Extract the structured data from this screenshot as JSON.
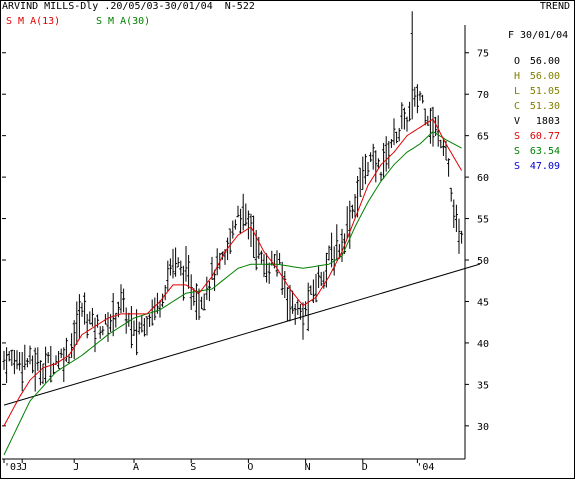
{
  "header": {
    "title": "ARVIND MILLS-Dly .20/05/03-30/01/04  N-522",
    "indicator_label": "TREND",
    "sma13_label": "S M A(13)",
    "sma30_label": "S M A(30)"
  },
  "info_panel": {
    "date": "F 30/01/04",
    "rows": [
      {
        "key": "O",
        "value": "56.00",
        "color": "#000000"
      },
      {
        "key": "H",
        "value": "56.00",
        "color": "#808000"
      },
      {
        "key": "L",
        "value": "51.05",
        "color": "#808000"
      },
      {
        "key": "C",
        "value": "51.30",
        "color": "#808000"
      },
      {
        "key": "V",
        "value": "1803",
        "color": "#000000"
      },
      {
        "key": "S",
        "value": "60.77",
        "color": "#e00000"
      },
      {
        "key": "S",
        "value": "63.54",
        "color": "#008000"
      },
      {
        "key": "S",
        "value": "47.09",
        "color": "#0000cc"
      }
    ]
  },
  "colors": {
    "sma13": "#e00000",
    "sma30": "#008000",
    "bars": "#000000",
    "trendline": "#000000"
  },
  "chart_data": {
    "type": "ohlc",
    "title": "ARVIND MILLS-Dly .20/05/03-30/01/04  N-522",
    "ylim": [
      26,
      81
    ],
    "y_ticks": [
      30,
      35,
      40,
      45,
      50,
      55,
      60,
      65,
      70,
      75
    ],
    "x_ticks": [
      {
        "label": "'03",
        "bar": 0
      },
      {
        "label": "J",
        "bar": 7
      },
      {
        "label": "J",
        "bar": 27
      },
      {
        "label": "A",
        "bar": 50
      },
      {
        "label": "S",
        "bar": 72
      },
      {
        "label": "O",
        "bar": 94
      },
      {
        "label": "N",
        "bar": 116
      },
      {
        "label": "D",
        "bar": 138
      },
      {
        "label": "'04",
        "bar": 159
      }
    ],
    "price_anchors": [
      [
        0,
        38
      ],
      [
        8,
        38
      ],
      [
        14,
        37
      ],
      [
        20,
        38
      ],
      [
        25,
        39
      ],
      [
        30,
        44
      ],
      [
        35,
        42
      ],
      [
        40,
        42
      ],
      [
        45,
        45
      ],
      [
        50,
        41
      ],
      [
        55,
        43
      ],
      [
        60,
        45
      ],
      [
        65,
        50
      ],
      [
        70,
        48
      ],
      [
        75,
        45
      ],
      [
        80,
        48
      ],
      [
        85,
        50
      ],
      [
        90,
        56
      ],
      [
        95,
        54
      ],
      [
        100,
        49
      ],
      [
        105,
        50
      ],
      [
        110,
        45
      ],
      [
        115,
        43
      ],
      [
        120,
        47
      ],
      [
        125,
        50
      ],
      [
        130,
        52
      ],
      [
        135,
        57
      ],
      [
        140,
        62
      ],
      [
        145,
        61
      ],
      [
        150,
        65
      ],
      [
        155,
        67
      ],
      [
        160,
        70
      ],
      [
        165,
        66
      ],
      [
        170,
        64
      ],
      [
        173,
        55
      ],
      [
        176,
        52
      ]
    ],
    "spike": {
      "bar": 157,
      "high": 80
    },
    "sma13_anchors": [
      [
        0,
        30
      ],
      [
        6,
        33.5
      ],
      [
        10,
        35.5
      ],
      [
        15,
        37
      ],
      [
        20,
        37.5
      ],
      [
        25,
        38.5
      ],
      [
        30,
        41
      ],
      [
        35,
        42
      ],
      [
        40,
        43
      ],
      [
        45,
        43.5
      ],
      [
        50,
        43.5
      ],
      [
        55,
        43.5
      ],
      [
        60,
        45
      ],
      [
        65,
        47
      ],
      [
        70,
        47
      ],
      [
        75,
        46
      ],
      [
        80,
        48
      ],
      [
        85,
        51
      ],
      [
        90,
        53
      ],
      [
        95,
        54
      ],
      [
        100,
        51
      ],
      [
        105,
        49
      ],
      [
        110,
        46.5
      ],
      [
        115,
        44.5
      ],
      [
        120,
        45.5
      ],
      [
        125,
        48
      ],
      [
        130,
        51
      ],
      [
        135,
        55
      ],
      [
        140,
        59
      ],
      [
        145,
        61.5
      ],
      [
        150,
        63
      ],
      [
        155,
        65
      ],
      [
        160,
        66
      ],
      [
        165,
        67
      ],
      [
        170,
        64
      ],
      [
        176,
        60.8
      ]
    ],
    "sma30_anchors": [
      [
        0,
        26.5
      ],
      [
        10,
        33
      ],
      [
        20,
        36.5
      ],
      [
        30,
        38.5
      ],
      [
        40,
        41
      ],
      [
        50,
        43
      ],
      [
        60,
        44
      ],
      [
        70,
        46
      ],
      [
        80,
        46.5
      ],
      [
        90,
        49
      ],
      [
        95,
        49.5
      ],
      [
        105,
        49.5
      ],
      [
        115,
        49
      ],
      [
        125,
        49.5
      ],
      [
        130,
        50.5
      ],
      [
        135,
        54
      ],
      [
        140,
        57
      ],
      [
        145,
        59.5
      ],
      [
        150,
        61.5
      ],
      [
        155,
        63
      ],
      [
        160,
        64
      ],
      [
        165,
        65.5
      ],
      [
        170,
        64.5
      ],
      [
        176,
        63.5
      ]
    ],
    "trendline": [
      [
        0,
        32.5
      ],
      [
        183,
        49.5
      ]
    ],
    "bar_count": 177
  }
}
